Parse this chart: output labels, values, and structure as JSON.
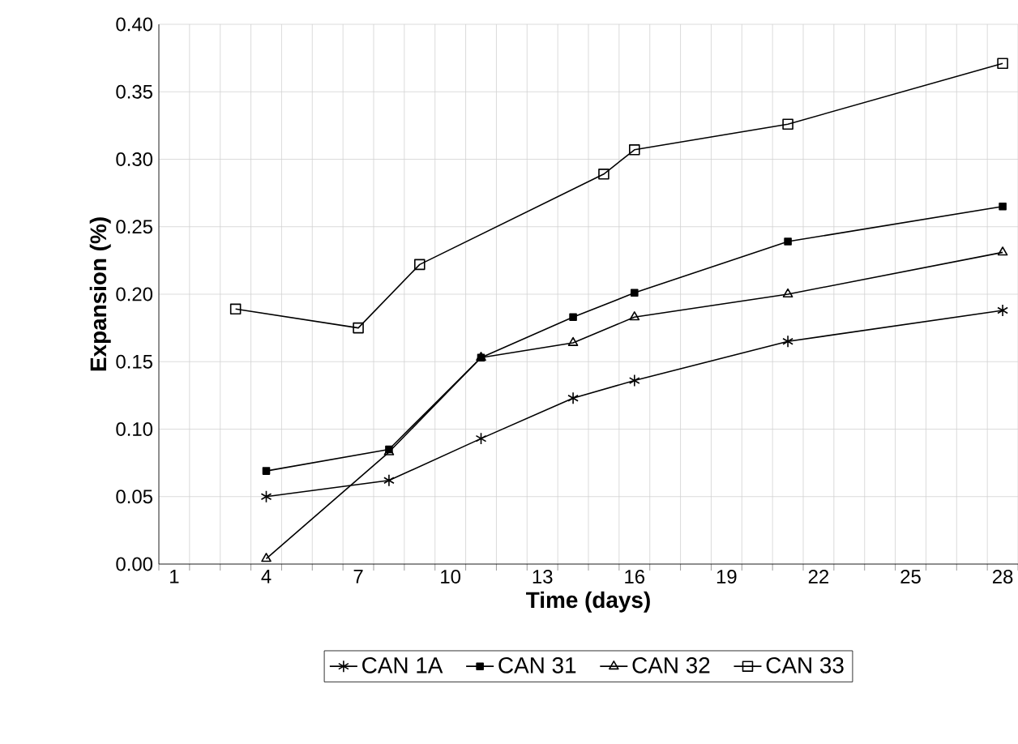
{
  "chart_data": {
    "type": "line",
    "xlabel": "Time (days)",
    "ylabel": "Expansion (%)",
    "xlim": [
      0.5,
      28.5
    ],
    "xticks": [
      1,
      4,
      7,
      10,
      13,
      16,
      19,
      22,
      25,
      28
    ],
    "ylim": [
      0,
      0.4
    ],
    "yticks": [
      {
        "value": 0,
        "label": "0.00"
      },
      {
        "value": 0.05,
        "label": "0.05"
      },
      {
        "value": 0.1,
        "label": "0.10"
      },
      {
        "value": 0.15,
        "label": "0.15"
      },
      {
        "value": 0.2,
        "label": "0.20"
      },
      {
        "value": 0.25,
        "label": "0.25"
      },
      {
        "value": 0.3,
        "label": "0.30"
      },
      {
        "value": 0.35,
        "label": "0.35"
      },
      {
        "value": 0.4,
        "label": "0.40"
      }
    ],
    "grid": true,
    "legend": "bottom",
    "line_style": "solid",
    "series": [
      {
        "name": "CAN 1A",
        "color": "#000000",
        "marker": "cross",
        "x": [
          4,
          8,
          11,
          14,
          16,
          21,
          28
        ],
        "values": [
          0.05,
          0.062,
          0.093,
          0.123,
          0.136,
          0.165,
          0.188
        ]
      },
      {
        "name": "CAN 31",
        "color": "#000000",
        "marker": "square",
        "x": [
          4,
          8,
          11,
          14,
          16,
          21,
          28
        ],
        "values": [
          0.069,
          0.085,
          0.153,
          0.183,
          0.201,
          0.239,
          0.265
        ]
      },
      {
        "name": "CAN 32",
        "color": "#000000",
        "marker": "triangle",
        "x": [
          4,
          8,
          11,
          14,
          16,
          21,
          28
        ],
        "values": [
          0.004,
          0.083,
          0.153,
          0.164,
          0.183,
          0.2,
          0.231
        ]
      },
      {
        "name": "CAN 33",
        "color": "#000000",
        "marker": "square_open",
        "x": [
          3,
          7,
          9,
          15,
          16,
          21,
          28
        ],
        "values": [
          0.189,
          0.175,
          0.222,
          0.289,
          0.307,
          0.326,
          0.371
        ]
      }
    ]
  }
}
